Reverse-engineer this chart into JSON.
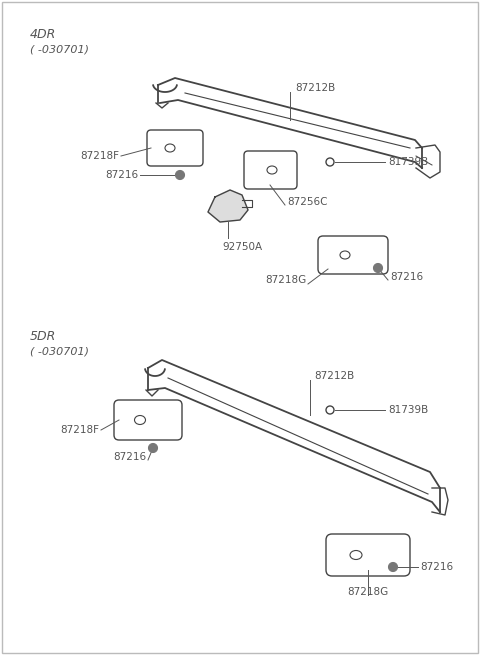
{
  "background_color": "#ffffff",
  "line_color": "#444444",
  "text_color": "#555555",
  "label_fontsize": 7.5,
  "header_fontsize": 9,
  "section1_label": "4DR",
  "section1_sublabel": "( -030701)",
  "section2_label": "5DR",
  "section2_sublabel": "( -030701)"
}
